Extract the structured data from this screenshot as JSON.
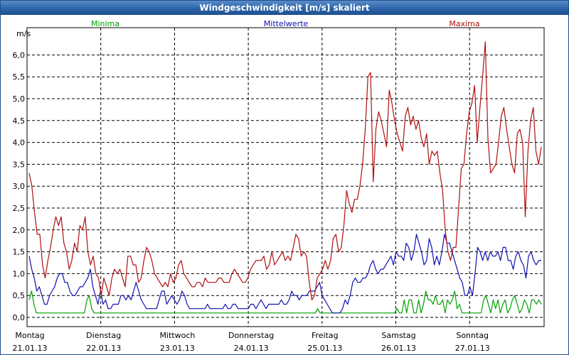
{
  "window": {
    "title": "Windgeschwindigkeit [m/s] skaliert"
  },
  "chart_data": {
    "type": "line",
    "title": "Windgeschwindigkeit [m/s] skaliert",
    "ylabel": "m/s",
    "ylim": [
      -0.2,
      6.6
    ],
    "yticks": [
      "0,0",
      "0,5",
      "1,0",
      "1,5",
      "2,0",
      "2,5",
      "3,0",
      "3,5",
      "4,0",
      "4,5",
      "5,0",
      "5,5",
      "6,0"
    ],
    "ytick_values": [
      0,
      0.5,
      1,
      1.5,
      2,
      2.5,
      3,
      3.5,
      4,
      4.5,
      5,
      5.5,
      6
    ],
    "days": [
      {
        "name": "Montag",
        "date": "21.01.13"
      },
      {
        "name": "Dienstag",
        "date": "22.01.13"
      },
      {
        "name": "Mittwoch",
        "date": "23.01.13"
      },
      {
        "name": "Donnerstag",
        "date": "24.01.13"
      },
      {
        "name": "Freitag",
        "date": "25.01.13"
      },
      {
        "name": "Samstag",
        "date": "26.01.13"
      },
      {
        "name": "Sonntag",
        "date": "27.01.13"
      }
    ],
    "grid": true,
    "legend_position": "top",
    "series": [
      {
        "name": "Minima",
        "color": "#00a000",
        "values": [
          0.4,
          0.6,
          0.3,
          0.1,
          0.1,
          0.1,
          0.1,
          0.1,
          0.1,
          0.1,
          0.1,
          0.1,
          0.1,
          0.1,
          0.1,
          0.1,
          0.1,
          0.1,
          0.1,
          0.1,
          0.1,
          0.1,
          0.1,
          0.1,
          0.4,
          0.5,
          0.2,
          0.1,
          0.1,
          0.1,
          0.1,
          0.1,
          0.1,
          0.1,
          0.1,
          0.1,
          0.1,
          0.1,
          0.1,
          0.1,
          0.1,
          0.1,
          0.1,
          0.1,
          0.1,
          0.1,
          0.1,
          0.1,
          0.1,
          0.1,
          0.1,
          0.1,
          0.1,
          0.1,
          0.1,
          0.1,
          0.1,
          0.1,
          0.1,
          0.1,
          0.1,
          0.1,
          0.1,
          0.1,
          0.1,
          0.1,
          0.1,
          0.1,
          0.1,
          0.1,
          0.1,
          0.1,
          0.1,
          0.1,
          0.1,
          0.1,
          0.1,
          0.1,
          0.1,
          0.1,
          0.1,
          0.1,
          0.1,
          0.1,
          0.1,
          0.1,
          0.1,
          0.1,
          0.1,
          0.1,
          0.1,
          0.1,
          0.1,
          0.1,
          0.1,
          0.1,
          0.1,
          0.1,
          0.1,
          0.1,
          0.1,
          0.1,
          0.1,
          0.1,
          0.1,
          0.1,
          0.1,
          0.1,
          0.1,
          0.1,
          0.1,
          0.1,
          0.1,
          0.1,
          0.1,
          0.1,
          0.1,
          0.1,
          0.1,
          0.1,
          0.2,
          0.1,
          0.1,
          0.1,
          0.1,
          0.1,
          0.1,
          0.1,
          0.1,
          0.1,
          0.1,
          0.1,
          0.1,
          0.1,
          0.1,
          0.1,
          0.1,
          0.1,
          0.1,
          0.1,
          0.1,
          0.1,
          0.1,
          0.1,
          0.1,
          0.1,
          0.1,
          0.1,
          0.1,
          0.1,
          0.1,
          0.1,
          0.1,
          0.2,
          0.1,
          0.1,
          0.4,
          0.1,
          0.4,
          0.4,
          0.1,
          0.1,
          0.4,
          0.1,
          0.3,
          0.6,
          0.4,
          0.4,
          0.3,
          0.5,
          0.3,
          0.3,
          0.4,
          0.1,
          0.4,
          0.3,
          0.4,
          0.6,
          0.2,
          0.3,
          0.1,
          0.1,
          0.1,
          0.1,
          0.1,
          0.1,
          0.1,
          0.1,
          0.1,
          0.4,
          0.5,
          0.3,
          0.1,
          0.4,
          0.2,
          0.4,
          0.1,
          0.3,
          0.4,
          0.1,
          0.2,
          0.4,
          0.5,
          0.3,
          0.1,
          0.2,
          0.4,
          0.3,
          0.1,
          0.4,
          0.4,
          0.3,
          0.4,
          0.3
        ]
      },
      {
        "name": "Mittelwerte",
        "color": "#1010b0",
        "values": [
          1.4,
          1.1,
          0.9,
          0.6,
          0.7,
          0.5,
          0.3,
          0.3,
          0.5,
          0.6,
          0.7,
          0.9,
          1.0,
          1.0,
          0.8,
          0.8,
          0.6,
          0.5,
          0.5,
          0.6,
          0.7,
          0.7,
          0.8,
          0.9,
          1.1,
          0.7,
          0.5,
          0.3,
          0.6,
          0.3,
          0.4,
          0.2,
          0.2,
          0.3,
          0.3,
          0.3,
          0.5,
          0.5,
          0.4,
          0.5,
          0.4,
          0.6,
          0.8,
          0.6,
          0.4,
          0.3,
          0.2,
          0.2,
          0.2,
          0.2,
          0.2,
          0.4,
          0.6,
          0.6,
          0.3,
          0.4,
          0.5,
          0.4,
          0.3,
          0.4,
          0.6,
          0.5,
          0.3,
          0.2,
          0.2,
          0.2,
          0.2,
          0.2,
          0.2,
          0.2,
          0.3,
          0.2,
          0.2,
          0.2,
          0.2,
          0.2,
          0.2,
          0.3,
          0.2,
          0.2,
          0.3,
          0.3,
          0.2,
          0.2,
          0.2,
          0.2,
          0.2,
          0.3,
          0.3,
          0.2,
          0.3,
          0.4,
          0.3,
          0.2,
          0.3,
          0.3,
          0.3,
          0.3,
          0.3,
          0.4,
          0.3,
          0.3,
          0.4,
          0.6,
          0.5,
          0.5,
          0.4,
          0.5,
          0.5,
          0.5,
          0.6,
          0.6,
          0.6,
          0.7,
          0.8,
          0.5,
          0.4,
          0.3,
          0.2,
          0.1,
          0.1,
          0.1,
          0.1,
          0.2,
          0.4,
          0.3,
          0.5,
          0.8,
          0.9,
          0.8,
          0.8,
          0.9,
          0.9,
          1.0,
          1.2,
          1.3,
          1.1,
          1.0,
          1.1,
          1.1,
          1.2,
          1.3,
          1.4,
          1.2,
          1.5,
          1.4,
          1.4,
          1.3,
          1.7,
          1.6,
          1.3,
          1.5,
          1.9,
          1.7,
          1.5,
          1.2,
          1.3,
          1.8,
          1.6,
          1.2,
          1.4,
          1.2,
          1.5,
          1.9,
          1.7,
          1.7,
          1.5,
          1.3,
          1.1,
          0.9,
          0.8,
          0.5,
          0.5,
          0.7,
          0.5,
          1.0,
          1.6,
          1.5,
          1.3,
          1.5,
          1.3,
          1.5,
          1.4,
          1.4,
          1.5,
          1.3,
          1.6,
          1.6,
          1.3,
          1.3,
          1.1,
          1.4,
          1.5,
          1.3,
          1.2,
          0.9,
          1.4,
          1.5,
          1.3,
          1.2,
          1.3,
          1.3
        ]
      },
      {
        "name": "Maxima",
        "color": "#b01010",
        "values": [
          3.3,
          3.0,
          2.4,
          1.9,
          1.9,
          1.2,
          0.9,
          1.3,
          1.6,
          2.0,
          2.3,
          2.1,
          2.3,
          1.7,
          1.5,
          1.1,
          1.3,
          1.7,
          1.5,
          2.1,
          2.0,
          2.3,
          1.5,
          1.2,
          1.4,
          1.0,
          0.9,
          0.5,
          0.9,
          0.7,
          0.5,
          0.9,
          1.1,
          1.0,
          1.1,
          0.9,
          0.7,
          1.4,
          1.4,
          1.2,
          1.2,
          0.8,
          0.9,
          1.3,
          1.6,
          1.5,
          1.3,
          1.0,
          0.9,
          0.8,
          0.7,
          0.8,
          0.7,
          1.0,
          0.8,
          0.9,
          1.2,
          1.3,
          1.0,
          0.9,
          0.8,
          0.7,
          0.7,
          0.8,
          0.8,
          0.7,
          0.9,
          0.8,
          0.8,
          0.8,
          0.8,
          0.9,
          0.9,
          0.8,
          0.8,
          0.8,
          1.0,
          1.1,
          1.0,
          0.9,
          0.8,
          0.8,
          0.9,
          1.1,
          1.2,
          1.3,
          1.3,
          1.3,
          1.4,
          1.1,
          1.2,
          1.5,
          1.2,
          1.3,
          1.4,
          1.5,
          1.3,
          1.4,
          1.3,
          1.6,
          1.9,
          1.8,
          1.4,
          1.5,
          1.4,
          0.8,
          0.4,
          0.5,
          0.9,
          1.0,
          1.1,
          1.3,
          1.1,
          1.3,
          1.8,
          1.9,
          1.5,
          1.6,
          2.1,
          2.9,
          2.6,
          2.4,
          2.7,
          2.7,
          3.0,
          3.5,
          4.3,
          5.5,
          5.6,
          3.1,
          4.3,
          4.7,
          4.5,
          4.2,
          3.9,
          5.2,
          4.9,
          4.5,
          4.2,
          4.0,
          3.8,
          4.6,
          4.8,
          4.4,
          4.6,
          4.3,
          4.5,
          4.1,
          3.9,
          4.2,
          3.5,
          3.8,
          3.7,
          3.8,
          3.3,
          2.9,
          2.0,
          1.5,
          1.3,
          1.6,
          1.6,
          2.5,
          3.4,
          3.5,
          4.2,
          4.7,
          4.9,
          5.3,
          4.0,
          4.8,
          5.5,
          6.3,
          4.1,
          3.3,
          3.4,
          3.5,
          4.0,
          4.6,
          4.8,
          4.3,
          3.9,
          3.5,
          3.3,
          4.2,
          4.3,
          4.0,
          2.3,
          3.8,
          4.5,
          4.8,
          3.8,
          3.5,
          3.9
        ]
      }
    ]
  }
}
